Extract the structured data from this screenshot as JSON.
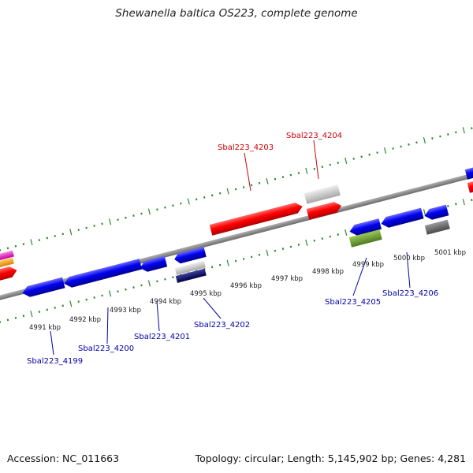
{
  "title": "Shewanella baltica OS223, complete genome",
  "footer": {
    "accession": "Accession: NC_011663",
    "summary": "Topology: circular; Length: 5,145,902 bp; Genes: 4,281"
  },
  "colors": {
    "forward_gene": "#ff0000",
    "reverse_gene": "#0000ee",
    "forward_label": "#cc0000",
    "reverse_label": "#0000aa",
    "backbone": "#8a8a8a",
    "tick": "#2a8a2a"
  },
  "scale_labels": [
    "4991 kbp",
    "4992 kbp",
    "4993 kbp",
    "4994 kbp",
    "4995 kbp",
    "4996 kbp",
    "4997 kbp",
    "4998 kbp",
    "4999 kbp",
    "5000 kbp",
    "5001 kbp"
  ],
  "gene_labels_top": [
    "Sbal223_4203",
    "Sbal223_4204"
  ],
  "gene_labels_bottom": [
    "Sbal223_4199",
    "Sbal223_4200",
    "Sbal223_4201",
    "Sbal223_4202",
    "Sbal223_4205",
    "Sbal223_4206"
  ]
}
